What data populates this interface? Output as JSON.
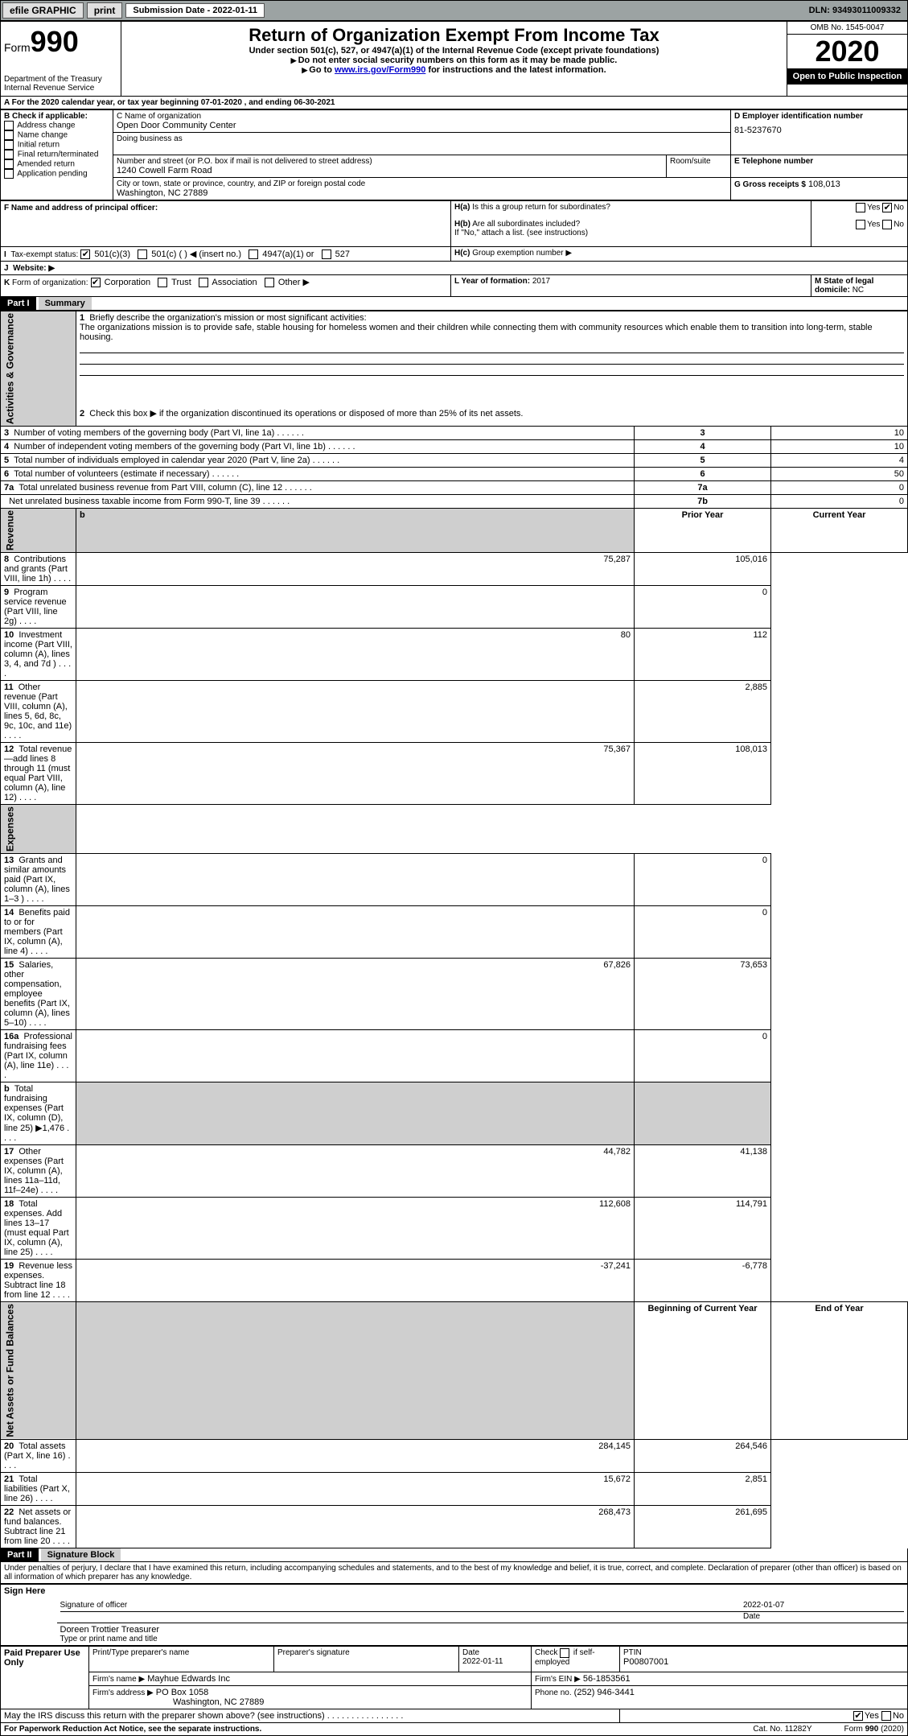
{
  "topbar": {
    "efile": "efile GRAPHIC",
    "print": "print",
    "submission_label": "Submission Date - 2022-01-11",
    "dln": "DLN: 93493011009332"
  },
  "header": {
    "form_label": "Form",
    "form_no": "990",
    "dept": "Department of the Treasury\nInternal Revenue Service",
    "title": "Return of Organization Exempt From Income Tax",
    "subtitle": "Under section 501(c), 527, or 4947(a)(1) of the Internal Revenue Code (except private foundations)",
    "note1": "Do not enter social security numbers on this form as it may be made public.",
    "note2_pre": "Go to ",
    "note2_link": "www.irs.gov/Form990",
    "note2_post": " for instructions and the latest information.",
    "omb": "OMB No. 1545-0047",
    "year": "2020",
    "open": "Open to Public Inspection"
  },
  "periodA": "For the 2020 calendar year, or tax year beginning 07-01-2020   , and ending 06-30-2021",
  "boxB": {
    "label": "B Check if applicable:",
    "items": [
      "Address change",
      "Name change",
      "Initial return",
      "Final return/terminated",
      "Amended return",
      "Application pending"
    ]
  },
  "boxC": {
    "label": "C Name of organization",
    "name": "Open Door Community Center",
    "dba_label": "Doing business as",
    "addr_label": "Number and street (or P.O. box if mail is not delivered to street address)",
    "room_label": "Room/suite",
    "addr": "1240 Cowell Farm Road",
    "city_label": "City or town, state or province, country, and ZIP or foreign postal code",
    "city": "Washington, NC  27889"
  },
  "boxD": {
    "label": "D Employer identification number",
    "ein": "81-5237670"
  },
  "boxE": {
    "label": "E Telephone number"
  },
  "boxG": {
    "label": "G Gross receipts $",
    "val": "108,013"
  },
  "boxF": {
    "label": "F  Name and address of principal officer:"
  },
  "boxH": {
    "a": "Is this a group return for subordinates?",
    "b": "Are all subordinates included?",
    "b_note": "If \"No,\" attach a list. (see instructions)",
    "c": "Group exemption number ▶",
    "yes": "Yes",
    "no": "No"
  },
  "rowI": {
    "label": "Tax-exempt status:",
    "opts": [
      "501(c)(3)",
      "501(c) (  ) ◀ (insert no.)",
      "4947(a)(1) or",
      "527"
    ]
  },
  "rowJ": {
    "label": "Website: ▶"
  },
  "rowK": {
    "label": "Form of organization:",
    "opts": [
      "Corporation",
      "Trust",
      "Association",
      "Other ▶"
    ]
  },
  "rowL": {
    "label": "L Year of formation:",
    "val": "2017"
  },
  "rowM": {
    "label": "M State of legal domicile:",
    "val": "NC"
  },
  "part1": {
    "hdr": "Part I",
    "title": "Summary",
    "l1": "Briefly describe the organization's mission or most significant activities:",
    "mission": "The organizations mission is to provide safe, stable housing for homeless women and their children while connecting them with community resources which enable them to transition into long-term, stable housing.",
    "l2": "Check this box ▶    if the organization discontinued its operations or disposed of more than 25% of its net assets.",
    "rows_gov": [
      {
        "n": "3",
        "t": "Number of voting members of the governing body (Part VI, line 1a)",
        "box": "3",
        "v": "10"
      },
      {
        "n": "4",
        "t": "Number of independent voting members of the governing body (Part VI, line 1b)",
        "box": "4",
        "v": "10"
      },
      {
        "n": "5",
        "t": "Total number of individuals employed in calendar year 2020 (Part V, line 2a)",
        "box": "5",
        "v": "4"
      },
      {
        "n": "6",
        "t": "Total number of volunteers (estimate if necessary)",
        "box": "6",
        "v": "50"
      },
      {
        "n": "7a",
        "t": "Total unrelated business revenue from Part VIII, column (C), line 12",
        "box": "7a",
        "v": "0"
      },
      {
        "n": "",
        "t": "Net unrelated business taxable income from Form 990-T, line 39",
        "box": "7b",
        "v": "0"
      }
    ],
    "col_prior": "Prior Year",
    "col_curr": "Current Year",
    "rows_rev": [
      {
        "n": "8",
        "t": "Contributions and grants (Part VIII, line 1h)",
        "p": "75,287",
        "c": "105,016"
      },
      {
        "n": "9",
        "t": "Program service revenue (Part VIII, line 2g)",
        "p": "",
        "c": "0"
      },
      {
        "n": "10",
        "t": "Investment income (Part VIII, column (A), lines 3, 4, and 7d )",
        "p": "80",
        "c": "112"
      },
      {
        "n": "11",
        "t": "Other revenue (Part VIII, column (A), lines 5, 6d, 8c, 9c, 10c, and 11e)",
        "p": "",
        "c": "2,885"
      },
      {
        "n": "12",
        "t": "Total revenue—add lines 8 through 11 (must equal Part VIII, column (A), line 12)",
        "p": "75,367",
        "c": "108,013"
      }
    ],
    "rows_exp": [
      {
        "n": "13",
        "t": "Grants and similar amounts paid (Part IX, column (A), lines 1–3 )",
        "p": "",
        "c": "0"
      },
      {
        "n": "14",
        "t": "Benefits paid to or for members (Part IX, column (A), line 4)",
        "p": "",
        "c": "0"
      },
      {
        "n": "15",
        "t": "Salaries, other compensation, employee benefits (Part IX, column (A), lines 5–10)",
        "p": "67,826",
        "c": "73,653"
      },
      {
        "n": "16a",
        "t": "Professional fundraising fees (Part IX, column (A), line 11e)",
        "p": "",
        "c": "0"
      },
      {
        "n": "b",
        "t": "Total fundraising expenses (Part IX, column (D), line 25) ▶1,476",
        "p": "GRAY",
        "c": "GRAY"
      },
      {
        "n": "17",
        "t": "Other expenses (Part IX, column (A), lines 11a–11d, 11f–24e)",
        "p": "44,782",
        "c": "41,138"
      },
      {
        "n": "18",
        "t": "Total expenses. Add lines 13–17 (must equal Part IX, column (A), line 25)",
        "p": "112,608",
        "c": "114,791"
      },
      {
        "n": "19",
        "t": "Revenue less expenses. Subtract line 18 from line 12",
        "p": "-37,241",
        "c": "-6,778"
      }
    ],
    "col_beg": "Beginning of Current Year",
    "col_end": "End of Year",
    "rows_net": [
      {
        "n": "20",
        "t": "Total assets (Part X, line 16)",
        "p": "284,145",
        "c": "264,546"
      },
      {
        "n": "21",
        "t": "Total liabilities (Part X, line 26)",
        "p": "15,672",
        "c": "2,851"
      },
      {
        "n": "22",
        "t": "Net assets or fund balances. Subtract line 21 from line 20",
        "p": "268,473",
        "c": "261,695"
      }
    ],
    "side_gov": "Activities & Governance",
    "side_rev": "Revenue",
    "side_exp": "Expenses",
    "side_net": "Net Assets or Fund Balances"
  },
  "part2": {
    "hdr": "Part II",
    "title": "Signature Block",
    "decl": "Under penalties of perjury, I declare that I have examined this return, including accompanying schedules and statements, and to the best of my knowledge and belief, it is true, correct, and complete. Declaration of preparer (other than officer) is based on all information of which preparer has any knowledge.",
    "sign_here": "Sign Here",
    "sig_officer": "Signature of officer",
    "date": "Date",
    "sig_date": "2022-01-07",
    "name_title": "Doreen Trottier Treasurer",
    "name_title_lbl": "Type or print name and title",
    "paid": "Paid Preparer Use Only",
    "prep_name_lbl": "Print/Type preparer's name",
    "prep_sig_lbl": "Preparer's signature",
    "prep_date_lbl": "Date",
    "prep_date": "2022-01-11",
    "check_lbl": "Check      if self-employed",
    "ptin_lbl": "PTIN",
    "ptin": "P00807001",
    "firm_name_lbl": "Firm's name   ▶",
    "firm_name": "Mayhue Edwards Inc",
    "firm_ein_lbl": "Firm's EIN ▶",
    "firm_ein": "56-1853561",
    "firm_addr_lbl": "Firm's address ▶",
    "firm_addr": "PO Box 1058",
    "firm_city": "Washington, NC  27889",
    "phone_lbl": "Phone no.",
    "phone": "(252) 946-3441",
    "discuss": "May the IRS discuss this return with the preparer shown above? (see instructions)",
    "yes": "Yes",
    "no": "No"
  },
  "footer": {
    "pra": "For Paperwork Reduction Act Notice, see the separate instructions.",
    "cat": "Cat. No. 11282Y",
    "form": "Form 990 (2020)"
  }
}
